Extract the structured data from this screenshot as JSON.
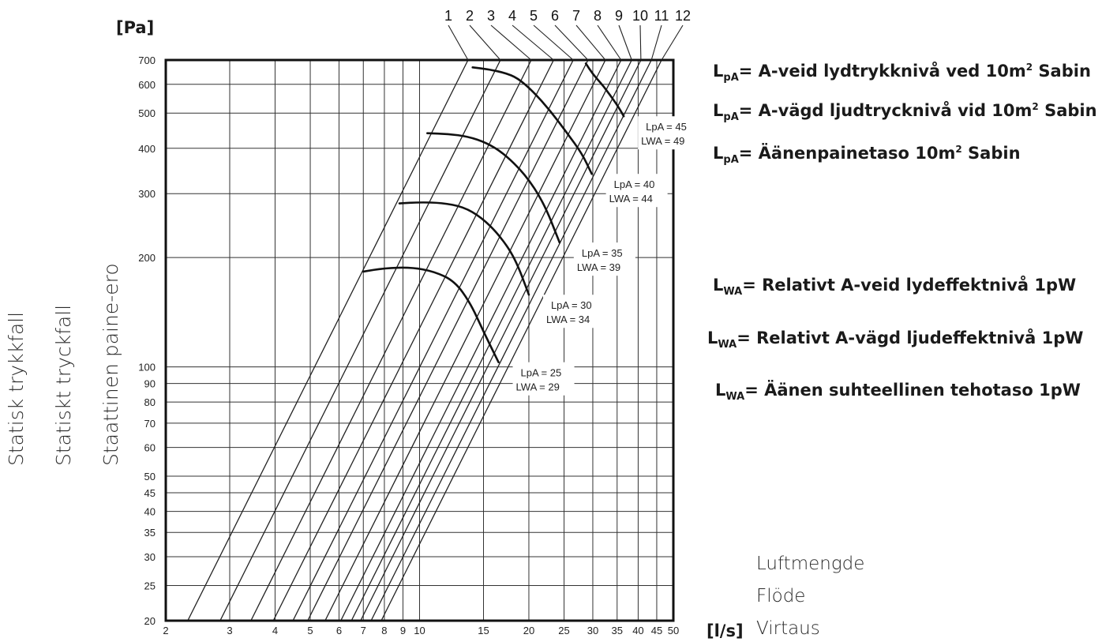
{
  "chart_data": {
    "type": "line",
    "x_scale": "log",
    "y_scale": "log",
    "xlim": [
      2,
      50
    ],
    "ylim": [
      20,
      700
    ],
    "x_unit": "[l/s]",
    "y_unit": "[Pa]",
    "x_ticks": [
      2,
      3,
      4,
      5,
      6,
      7,
      8,
      9,
      10,
      15,
      20,
      25,
      30,
      35,
      40,
      45,
      50
    ],
    "y_ticks": [
      20,
      25,
      30,
      35,
      40,
      45,
      50,
      60,
      70,
      80,
      90,
      100,
      200,
      300,
      400,
      500,
      600,
      700
    ],
    "grid": true,
    "y_axis_titles": [
      "Statisk trykkfall",
      "Statiskt tryckfall",
      "Staattinen paine-ero"
    ],
    "x_axis_titles": [
      "Luftmengde",
      "Flöde",
      "Virtaus"
    ],
    "settings": {
      "labels": [
        "1",
        "2",
        "3",
        "4",
        "5",
        "6",
        "7",
        "8",
        "9",
        "10",
        "11",
        "12"
      ],
      "x_at_700": [
        13.6,
        16.7,
        20.3,
        23.4,
        26.5,
        29.1,
        32.5,
        35.9,
        38.4,
        40.7,
        43.5,
        46.4
      ]
    },
    "noise_curves": [
      {
        "lpa_label": "LpA = 25",
        "lwa_label": "LWA = 29",
        "points": [
          [
            7.0,
            183
          ],
          [
            8.0,
            187
          ],
          [
            9.5,
            188
          ],
          [
            11.0,
            183
          ],
          [
            12.5,
            172
          ],
          [
            13.8,
            150
          ],
          [
            15.0,
            125
          ],
          [
            16.5,
            103
          ]
        ]
      },
      {
        "lpa_label": "LpA = 30",
        "lwa_label": "LWA = 34",
        "points": [
          [
            8.8,
            282
          ],
          [
            10.0,
            284
          ],
          [
            11.5,
            283
          ],
          [
            13.2,
            276
          ],
          [
            14.8,
            258
          ],
          [
            16.5,
            232
          ],
          [
            18.3,
            200
          ],
          [
            20.0,
            158
          ]
        ]
      },
      {
        "lpa_label": "LpA = 35",
        "lwa_label": "LWA = 39",
        "points": [
          [
            10.5,
            440
          ],
          [
            12.0,
            438
          ],
          [
            13.6,
            431
          ],
          [
            15.3,
            414
          ],
          [
            17.0,
            388
          ],
          [
            19.5,
            340
          ],
          [
            22.0,
            283
          ],
          [
            24.3,
            220
          ]
        ]
      },
      {
        "lpa_label": "LpA = 40",
        "lwa_label": "LWA = 44",
        "points": [
          [
            14.0,
            668
          ],
          [
            15.5,
            660
          ],
          [
            17.2,
            645
          ],
          [
            18.6,
            625
          ],
          [
            20.5,
            575
          ],
          [
            23.0,
            505
          ],
          [
            25.5,
            440
          ],
          [
            28.0,
            387
          ],
          [
            29.8,
            340
          ]
        ]
      },
      {
        "lpa_label": "LpA = 45",
        "lwa_label": "LWA = 49",
        "points": [
          [
            28.7,
            685
          ],
          [
            30.0,
            640
          ],
          [
            31.8,
            600
          ],
          [
            33.5,
            560
          ],
          [
            35.3,
            520
          ],
          [
            36.5,
            490
          ]
        ]
      }
    ]
  },
  "header": {
    "y_unit": "[Pa]",
    "x_unit": "[l/s]"
  },
  "legend": {
    "lpa": [
      {
        "sym": "L",
        "sub": "pA",
        "text": "= A-veid lydtrykknivå ved 10m",
        "sup": "2",
        "tail": " Sabin"
      },
      {
        "sym": "L",
        "sub": "pA",
        "text": "= A-vägd ljudtrycknivå vid 10m",
        "sup": "2",
        "tail": " Sabin"
      },
      {
        "sym": "L",
        "sub": "pA",
        "text": "= Äänenpainetaso 10m",
        "sup": "2",
        "tail": " Sabin"
      }
    ],
    "lwa": [
      {
        "sym": "L",
        "sub": "WA",
        "text": "= Relativt A-veid lydeffektnivå 1pW"
      },
      {
        "sym": "L",
        "sub": "WA",
        "text": "= Relativt A-vägd ljudeffektnivå 1pW"
      },
      {
        "sym": "L",
        "sub": "WA",
        "text": "= Äänen suhteellinen tehotaso 1pW"
      }
    ]
  },
  "y_titles": {
    "no": "Statisk trykkfall",
    "se": "Statiskt tryckfall",
    "fi": "Staattinen paine-ero"
  },
  "x_titles": {
    "no": "Luftmengde",
    "se": "Flöde",
    "fi": "Virtaus"
  }
}
